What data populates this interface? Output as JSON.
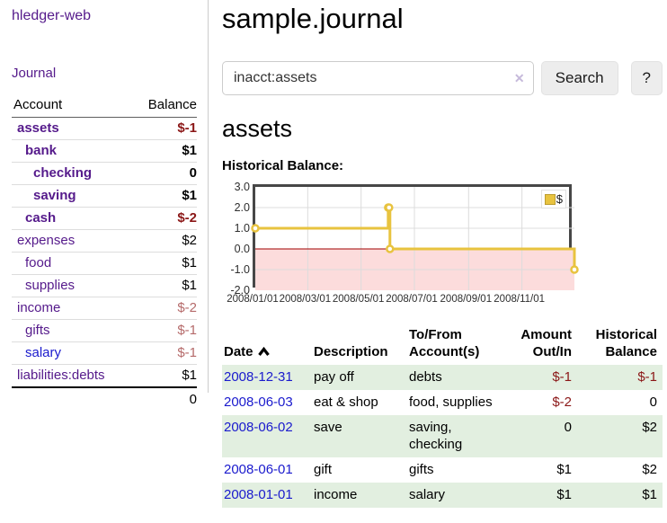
{
  "app": {
    "brand": "hledger-web",
    "nav_journal": "Journal"
  },
  "sidebar": {
    "header": {
      "account": "Account",
      "balance": "Balance"
    },
    "accounts": [
      {
        "name": "assets",
        "balance": "$-1"
      },
      {
        "name": "bank",
        "balance": "$1"
      },
      {
        "name": "checking",
        "balance": "0"
      },
      {
        "name": "saving",
        "balance": "$1"
      },
      {
        "name": "cash",
        "balance": "$-2"
      },
      {
        "name": "expenses",
        "balance": "$2"
      },
      {
        "name": "food",
        "balance": "$1"
      },
      {
        "name": "supplies",
        "balance": "$1"
      },
      {
        "name": "income",
        "balance": "$-2"
      },
      {
        "name": "gifts",
        "balance": "$-1"
      },
      {
        "name": "salary",
        "balance": "$-1"
      },
      {
        "name": "liabilities:debts",
        "balance": "$1"
      }
    ],
    "total": "0"
  },
  "header": {
    "title": "sample.journal"
  },
  "search": {
    "value": "inacct:assets",
    "clear_icon": "✕",
    "search_label": "Search",
    "help_label": "?"
  },
  "account_page": {
    "title": "assets",
    "chart_label": "Historical Balance:"
  },
  "chart_data": {
    "type": "line",
    "title": "Historical Balance:",
    "steps": true,
    "series": [
      {
        "name": "$",
        "color": "#e8c33f",
        "points": [
          {
            "date": "2008-01-01",
            "x": 0,
            "y": 1
          },
          {
            "date": "2008-06-01",
            "x": 152,
            "y": 2
          },
          {
            "date": "2008-06-02",
            "x": 153,
            "y": 2
          },
          {
            "date": "2008-06-03",
            "x": 154,
            "y": 0
          },
          {
            "date": "2008-12-31",
            "x": 365,
            "y": -1
          }
        ]
      }
    ],
    "xlim": [
      0,
      365
    ],
    "ylim": [
      -2,
      3
    ],
    "xticks": [
      {
        "x": 0,
        "label": "2008/01/01"
      },
      {
        "x": 60,
        "label": "2008/03/01"
      },
      {
        "x": 121,
        "label": "2008/05/01"
      },
      {
        "x": 182,
        "label": "2008/07/01"
      },
      {
        "x": 244,
        "label": "2008/09/01"
      },
      {
        "x": 305,
        "label": "2008/11/01"
      }
    ],
    "yticks": [
      {
        "v": 3,
        "label": "3.0"
      },
      {
        "v": 2,
        "label": "2.0"
      },
      {
        "v": 1,
        "label": "1.0"
      },
      {
        "v": 0,
        "label": "0.0"
      },
      {
        "v": -1,
        "label": "-1.0"
      },
      {
        "v": -2,
        "label": "-2.0"
      }
    ],
    "legend": [
      "$"
    ],
    "legend_position": "top-right",
    "grid": true,
    "colors": {
      "negative_fill": "#fcdcdc",
      "zero_line": "#a00000",
      "grid": "#dcdcdc",
      "border": "#474747"
    }
  },
  "register": {
    "headers": {
      "date": "Date",
      "description": "Description",
      "accounts": "To/From Account(s)",
      "amount": "Amount Out/In",
      "balance": "Historical Balance"
    },
    "rows": [
      {
        "date": "2008-12-31",
        "description": "pay off",
        "accounts": "debts",
        "amount": "$-1",
        "balance": "$-1"
      },
      {
        "date": "2008-06-03",
        "description": "eat & shop",
        "accounts": "food, supplies",
        "amount": "$-2",
        "balance": "0"
      },
      {
        "date": "2008-06-02",
        "description": "save",
        "accounts": "saving, checking",
        "amount": "0",
        "balance": "$2"
      },
      {
        "date": "2008-06-01",
        "description": "gift",
        "accounts": "gifts",
        "amount": "$1",
        "balance": "$2"
      },
      {
        "date": "2008-01-01",
        "description": "income",
        "accounts": "salary",
        "amount": "$1",
        "balance": "$1"
      }
    ]
  }
}
